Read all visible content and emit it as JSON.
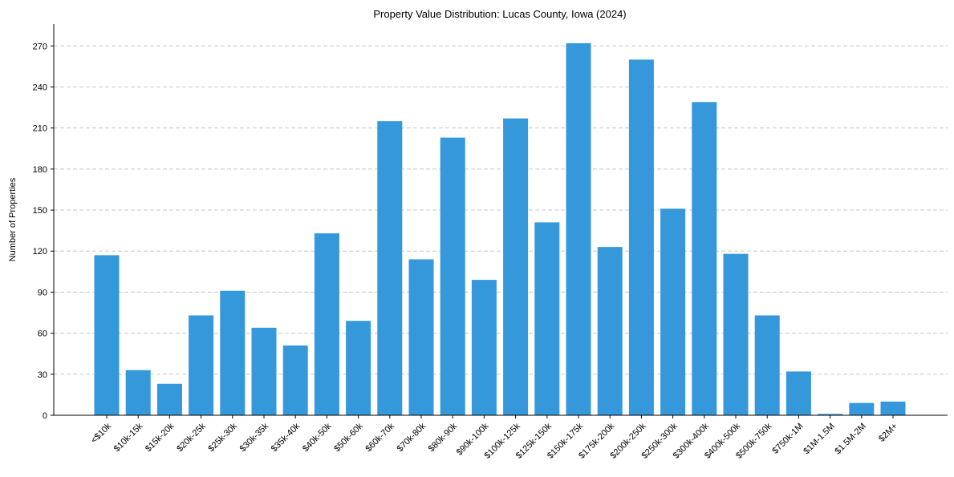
{
  "chart_data": {
    "type": "bar",
    "title": "Property Value Distribution: Lucas County, Iowa (2024)",
    "xlabel": "",
    "ylabel": "Number of Properties",
    "ylim": [
      0,
      286
    ],
    "yticks": [
      0,
      30,
      60,
      90,
      120,
      150,
      180,
      210,
      240,
      270
    ],
    "grid": "y-dashed",
    "bar_color": "#3498db",
    "categories": [
      "<$10k",
      "$10k-15k",
      "$15k-20k",
      "$20k-25k",
      "$25k-30k",
      "$30k-35k",
      "$35k-40k",
      "$40k-50k",
      "$50k-60k",
      "$60k-70k",
      "$70k-80k",
      "$80k-90k",
      "$90k-100k",
      "$100k-125k",
      "$125k-150k",
      "$150k-175k",
      "$175k-200k",
      "$200k-250k",
      "$250k-300k",
      "$300k-400k",
      "$400k-500k",
      "$500k-750k",
      "$750k-1M",
      "$1M-1.5M",
      "$1.5M-2M",
      "$2M+"
    ],
    "values": [
      117,
      33,
      23,
      73,
      91,
      64,
      51,
      133,
      69,
      215,
      114,
      203,
      99,
      217,
      141,
      272,
      123,
      260,
      151,
      229,
      118,
      73,
      32,
      1,
      9,
      10
    ]
  }
}
